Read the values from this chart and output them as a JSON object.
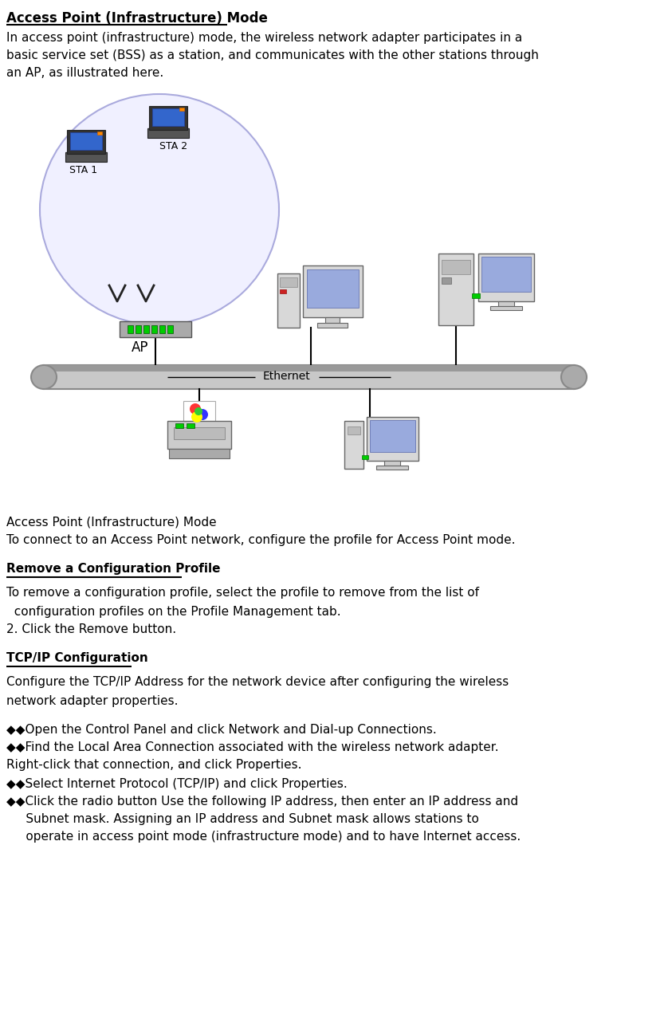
{
  "bg_color": "#ffffff",
  "title": "Access Point (Infrastructure) Mode",
  "para1_lines": [
    "In access point (infrastructure) mode, the wireless network adapter participates in a",
    "basic service set (BSS) as a station, and communicates with the other stations through",
    "an AP, as illustrated here."
  ],
  "caption": "Access Point (Infrastructure) Mode",
  "para2": "To connect to an Access Point network, configure the profile for Access Point mode.",
  "section2_title": "Remove a Configuration Profile",
  "section2_line1": "To remove a configuration profile, select the profile to remove from the list of",
  "section2_line2": "  configuration profiles on the Profile Management tab.",
  "section2_item": "2. Click the Remove button.",
  "section3_title": "TCP/IP Configuration",
  "section3_line1": "Configure the TCP/IP Address for the network device after configuring the wireless",
  "section3_line2": "network adapter properties.",
  "bullet": "◆◆",
  "bullet_lines": [
    [
      "◆◆Open the Control Panel and click Network and Dial-up Connections."
    ],
    [
      "◆◆Find the Local Area Connection associated with the wireless network adapter.",
      "Right-click that connection, and click Properties."
    ],
    [
      "◆◆Select Internet Protocol (TCP/IP) and click Properties."
    ],
    [
      "◆◆Click the radio button Use the following IP address, then enter an IP address and",
      "     Subnet mask. Assigning an IP address and Subnet mask allows stations to",
      "     operate in access point mode (infrastructure mode) and to have Internet access."
    ]
  ],
  "font_size_title": 12,
  "font_size_body": 11,
  "font_size_small": 9,
  "text_color": "#000000"
}
